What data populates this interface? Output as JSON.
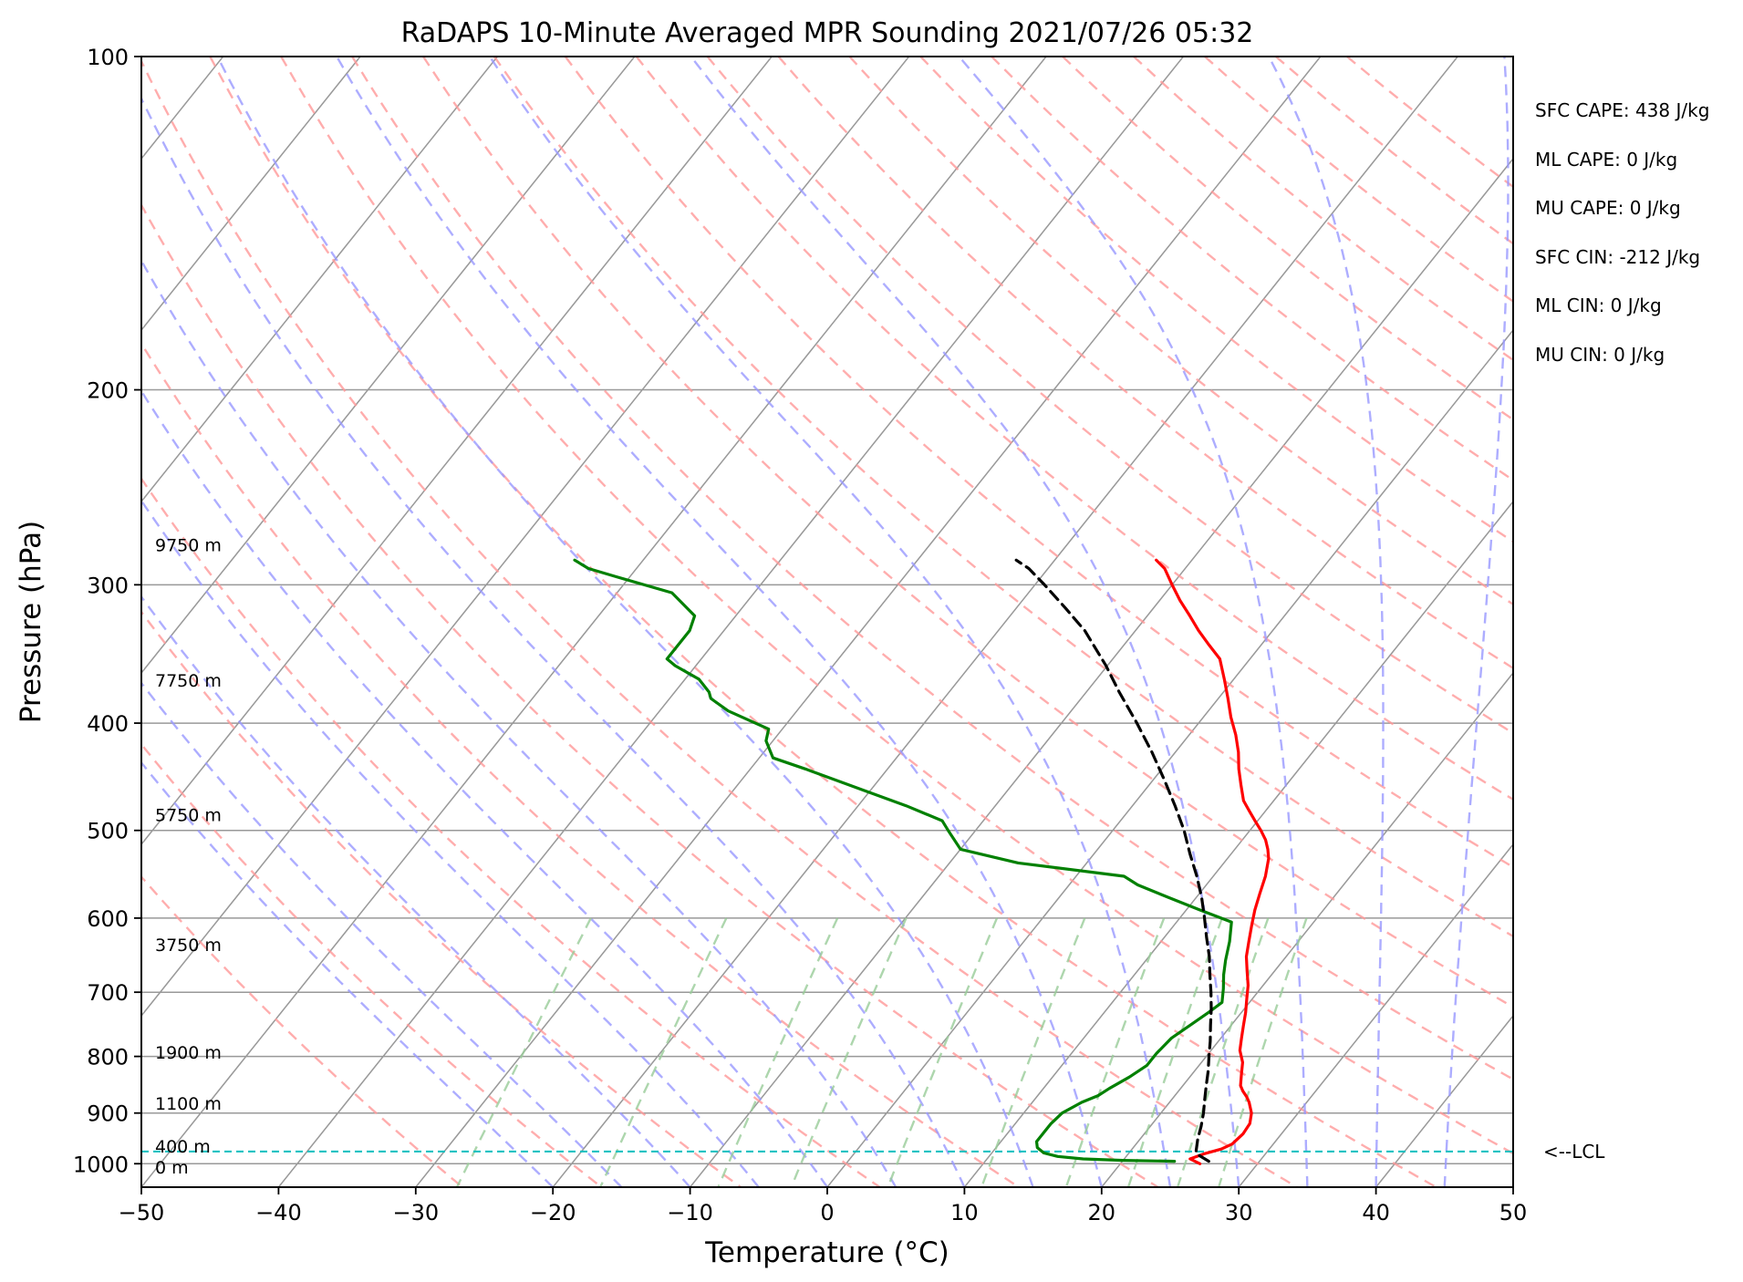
{
  "chart_data": {
    "type": "line",
    "title": "RaDAPS 10-Minute Averaged MPR Sounding 2021/07/26 05:32",
    "xlabel": "Temperature (°C)",
    "ylabel": "Pressure (hPa)",
    "xlim": [
      -50,
      50
    ],
    "ylim": [
      1050,
      100
    ],
    "y_scale": "log",
    "x_ticks": [
      "−50",
      "−40",
      "−30",
      "−20",
      "−10",
      "0",
      "10",
      "20",
      "30",
      "40",
      "50"
    ],
    "y_ticks": [
      "100",
      "200",
      "300",
      "400",
      "500",
      "600",
      "700",
      "800",
      "900",
      "1000"
    ],
    "grid": true,
    "colors": {
      "temperature": "#ff0000",
      "dewpoint": "#008000",
      "parcel": "#000000",
      "lcl_line": "#00bfbf",
      "dry_adiabat": "#ff9999",
      "moist_adiabat": "#9999ff",
      "mixing_ratio": "#99cc99",
      "isotherm": "#999999"
    },
    "series": [
      {
        "name": "",
        "kind": "temperature",
        "points": [
          [
            25.8,
            1000
          ],
          [
            24.8,
            990
          ],
          [
            25.5,
            980
          ],
          [
            26.5,
            970
          ],
          [
            27.0,
            960
          ],
          [
            27.2,
            940
          ],
          [
            27.1,
            920
          ],
          [
            26.6,
            900
          ],
          [
            25.8,
            880
          ],
          [
            25.3,
            870
          ],
          [
            24.7,
            860
          ],
          [
            24.2,
            850
          ],
          [
            23.6,
            830
          ],
          [
            23.0,
            810
          ],
          [
            22.1,
            790
          ],
          [
            21.5,
            770
          ],
          [
            20.9,
            750
          ],
          [
            20.3,
            730
          ],
          [
            19.6,
            710
          ],
          [
            18.9,
            690
          ],
          [
            18.0,
            670
          ],
          [
            17.1,
            650
          ],
          [
            16.4,
            630
          ],
          [
            15.7,
            610
          ],
          [
            15.0,
            590
          ],
          [
            14.4,
            570
          ],
          [
            13.8,
            550
          ],
          [
            13.0,
            530
          ],
          [
            12.4,
            520
          ],
          [
            11.7,
            510
          ],
          [
            10.8,
            500
          ],
          [
            9.8,
            490
          ],
          [
            8.8,
            480
          ],
          [
            7.8,
            470
          ],
          [
            6.7,
            455
          ],
          [
            5.6,
            440
          ],
          [
            4.6,
            425
          ],
          [
            3.4,
            410
          ],
          [
            2.0,
            395
          ],
          [
            0.7,
            380
          ],
          [
            -0.7,
            365
          ],
          [
            -2.2,
            350
          ],
          [
            -3.8,
            340
          ],
          [
            -5.4,
            330
          ],
          [
            -6.9,
            320
          ],
          [
            -8.5,
            310
          ],
          [
            -10.0,
            300
          ],
          [
            -11.5,
            290
          ],
          [
            -12.6,
            285
          ]
        ]
      },
      {
        "name": "",
        "kind": "dewpoint",
        "points": [
          [
            23.8,
            995
          ],
          [
            20.0,
            993
          ],
          [
            17.0,
            990
          ],
          [
            15.0,
            985
          ],
          [
            13.8,
            978
          ],
          [
            13.0,
            967
          ],
          [
            12.6,
            955
          ],
          [
            12.6,
            940
          ],
          [
            12.6,
            920
          ],
          [
            12.8,
            900
          ],
          [
            13.6,
            880
          ],
          [
            14.4,
            868
          ],
          [
            14.8,
            855
          ],
          [
            15.6,
            835
          ],
          [
            16.2,
            815
          ],
          [
            16.2,
            795
          ],
          [
            16.4,
            770
          ],
          [
            17.0,
            750
          ],
          [
            17.6,
            730
          ],
          [
            18.0,
            715
          ],
          [
            17.3,
            695
          ],
          [
            16.5,
            675
          ],
          [
            15.8,
            655
          ],
          [
            15.0,
            630
          ],
          [
            14.0,
            605
          ],
          [
            11.0,
            590
          ],
          [
            8.0,
            575
          ],
          [
            5.0,
            560
          ],
          [
            3.5,
            550
          ],
          [
            -5.0,
            535
          ],
          [
            -10.0,
            520
          ],
          [
            -12.0,
            500
          ],
          [
            -13.0,
            490
          ],
          [
            -16.5,
            475
          ],
          [
            -20.5,
            460
          ],
          [
            -26.0,
            440
          ],
          [
            -29.0,
            430
          ],
          [
            -30.5,
            415
          ],
          [
            -31.0,
            405
          ],
          [
            -35.0,
            390
          ],
          [
            -37.0,
            380
          ],
          [
            -37.5,
            375
          ],
          [
            -39.0,
            365
          ],
          [
            -41.5,
            355
          ],
          [
            -42.5,
            350
          ],
          [
            -42.5,
            340
          ],
          [
            -42.5,
            330
          ],
          [
            -43.0,
            320
          ],
          [
            -46.0,
            305
          ],
          [
            -51.0,
            295
          ],
          [
            -53.5,
            290
          ],
          [
            -55.0,
            285
          ]
        ]
      },
      {
        "name": "",
        "kind": "parcel",
        "points": [
          [
            26.3,
            995
          ],
          [
            25.0,
            980
          ],
          [
            24.8,
            975
          ],
          [
            24.2,
            950
          ],
          [
            23.7,
            925
          ],
          [
            23.1,
            900
          ],
          [
            22.4,
            875
          ],
          [
            21.7,
            850
          ],
          [
            21.0,
            825
          ],
          [
            20.2,
            800
          ],
          [
            19.4,
            775
          ],
          [
            18.5,
            750
          ],
          [
            17.6,
            725
          ],
          [
            16.6,
            700
          ],
          [
            15.5,
            675
          ],
          [
            14.4,
            650
          ],
          [
            13.1,
            625
          ],
          [
            11.8,
            600
          ],
          [
            10.4,
            575
          ],
          [
            8.8,
            550
          ],
          [
            7.0,
            525
          ],
          [
            5.2,
            500
          ],
          [
            3.1,
            475
          ],
          [
            0.8,
            450
          ],
          [
            -1.7,
            425
          ],
          [
            -4.5,
            400
          ],
          [
            -7.6,
            375
          ],
          [
            -10.1,
            355
          ],
          [
            -13.7,
            330
          ],
          [
            -16.4,
            315
          ],
          [
            -19.3,
            300
          ],
          [
            -21.4,
            290
          ],
          [
            -22.8,
            285
          ]
        ]
      }
    ],
    "lcl_pressure": 975,
    "lcl_label": "<--LCL",
    "height_labels": [
      {
        "text": "9750 m",
        "p": 276
      },
      {
        "text": "7750 m",
        "p": 366
      },
      {
        "text": "5750 m",
        "p": 484
      },
      {
        "text": "3750 m",
        "p": 634
      },
      {
        "text": "1900 m",
        "p": 793
      },
      {
        "text": "1100 m",
        "p": 882
      },
      {
        "text": "400 m",
        "p": 964
      },
      {
        "text": "0 m",
        "p": 1007
      }
    ],
    "annotations": [
      "SFC CAPE: 438 J/kg",
      "ML CAPE: 0 J/kg",
      "MU CAPE: 0 J/kg",
      "SFC CIN: -212 J/kg",
      "ML CIN: 0 J/kg",
      "MU CIN: 0 J/kg"
    ]
  }
}
